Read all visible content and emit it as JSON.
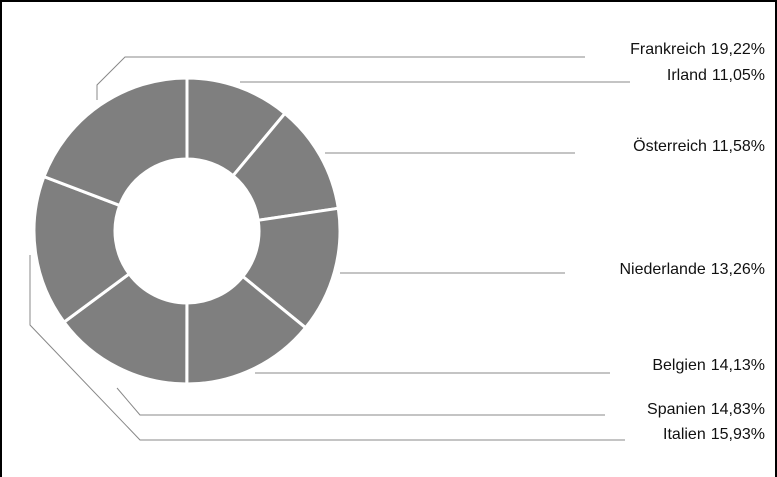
{
  "chart_data": {
    "type": "donut",
    "categories": [
      "Irland",
      "Österreich",
      "Niederlande",
      "Belgien",
      "Spanien",
      "Italien",
      "Frankreich"
    ],
    "values": [
      11.05,
      11.58,
      13.26,
      14.13,
      14.83,
      15.93,
      19.22
    ],
    "value_labels": [
      "11,05%",
      "11,58%",
      "13,26%",
      "14,13%",
      "14,83%",
      "15,93%",
      "19,22%"
    ],
    "color": "#7f7f7f"
  }
}
